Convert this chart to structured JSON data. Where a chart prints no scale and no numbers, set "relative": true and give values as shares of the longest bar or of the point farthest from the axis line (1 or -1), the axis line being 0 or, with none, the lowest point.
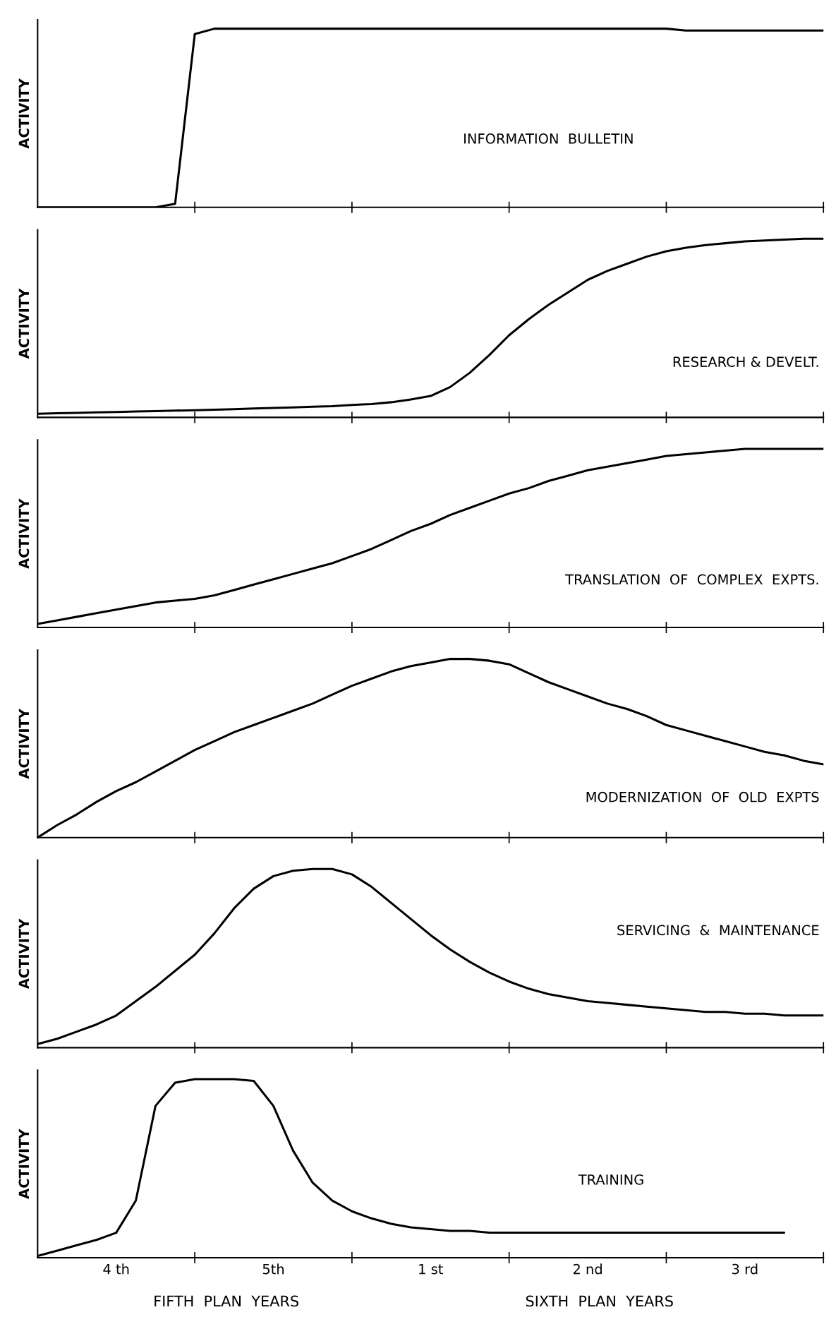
{
  "chart_data": [
    {
      "type": "line",
      "title": "INFORMATION  BULLETIN",
      "ylabel": "ACTIVITY",
      "relative": true,
      "categories": [
        null,
        null,
        null,
        null,
        null,
        null,
        null,
        null,
        null,
        null,
        null,
        null,
        null,
        null,
        null,
        null,
        null,
        null,
        null,
        null,
        null,
        null,
        null,
        null,
        null,
        null,
        null,
        null,
        null,
        null,
        null,
        null,
        null,
        null,
        null,
        null,
        null,
        null,
        null,
        null,
        null
      ],
      "series": [
        {
          "color": "#000000",
          "values": [
            0,
            0,
            0,
            0,
            0,
            0,
            0,
            0.02,
            0.97,
            1,
            1,
            1,
            1,
            1,
            1,
            1,
            1,
            1,
            1,
            1,
            1,
            1,
            1,
            1,
            1,
            1,
            1,
            1,
            1,
            1,
            1,
            1,
            1,
            0.99,
            0.99,
            0.99,
            0.99,
            0.99,
            0.99,
            0.99,
            0.99
          ]
        }
      ]
    },
    {
      "type": "line",
      "title": "RESEARCH & DEVELT.",
      "ylabel": "ACTIVITY",
      "relative": true,
      "categories": [
        null,
        null,
        null,
        null,
        null,
        null,
        null,
        null,
        null,
        null,
        null,
        null,
        null,
        null,
        null,
        null,
        null,
        null,
        null,
        null,
        null,
        null,
        null,
        null,
        null,
        null,
        null,
        null,
        null,
        null,
        null,
        null,
        null,
        null,
        null,
        null,
        null,
        null,
        null,
        null,
        null
      ],
      "series": [
        {
          "color": "#000000",
          "values": [
            0.02,
            0.023,
            0.025,
            0.028,
            0.03,
            0.033,
            0.035,
            0.038,
            0.04,
            0.043,
            0.046,
            0.05,
            0.053,
            0.056,
            0.06,
            0.063,
            0.07,
            0.075,
            0.085,
            0.1,
            0.12,
            0.17,
            0.25,
            0.35,
            0.46,
            0.55,
            0.63,
            0.7,
            0.77,
            0.82,
            0.86,
            0.9,
            0.93,
            0.95,
            0.965,
            0.975,
            0.985,
            0.99,
            0.995,
            1,
            1
          ]
        }
      ]
    },
    {
      "type": "line",
      "title": "TRANSLATION  OF  COMPLEX  EXPTS.",
      "ylabel": "ACTIVITY",
      "relative": true,
      "categories": [
        null,
        null,
        null,
        null,
        null,
        null,
        null,
        null,
        null,
        null,
        null,
        null,
        null,
        null,
        null,
        null,
        null,
        null,
        null,
        null,
        null,
        null,
        null,
        null,
        null,
        null,
        null,
        null,
        null,
        null,
        null,
        null,
        null,
        null,
        null,
        null,
        null,
        null,
        null,
        null,
        null
      ],
      "series": [
        {
          "color": "#000000",
          "values": [
            0.02,
            0.04,
            0.06,
            0.08,
            0.1,
            0.12,
            0.14,
            0.15,
            0.16,
            0.18,
            0.21,
            0.24,
            0.27,
            0.3,
            0.33,
            0.36,
            0.4,
            0.44,
            0.49,
            0.54,
            0.58,
            0.63,
            0.67,
            0.71,
            0.75,
            0.78,
            0.82,
            0.85,
            0.88,
            0.9,
            0.92,
            0.94,
            0.96,
            0.97,
            0.98,
            0.99,
            1,
            1,
            1,
            1,
            1
          ]
        }
      ]
    },
    {
      "type": "line",
      "title": "MODERNIZATION  OF  OLD  EXPTS",
      "ylabel": "ACTIVITY",
      "relative": true,
      "categories": [
        null,
        null,
        null,
        null,
        null,
        null,
        null,
        null,
        null,
        null,
        null,
        null,
        null,
        null,
        null,
        null,
        null,
        null,
        null,
        null,
        null,
        null,
        null,
        null,
        null,
        null,
        null,
        null,
        null,
        null,
        null,
        null,
        null,
        null,
        null,
        null,
        null,
        null,
        null,
        null,
        null
      ],
      "series": [
        {
          "color": "#000000",
          "values": [
            0,
            0.07,
            0.13,
            0.2,
            0.26,
            0.31,
            0.37,
            0.43,
            0.49,
            0.54,
            0.59,
            0.63,
            0.67,
            0.71,
            0.75,
            0.8,
            0.85,
            0.89,
            0.93,
            0.96,
            0.98,
            1,
            1,
            0.99,
            0.97,
            0.92,
            0.87,
            0.83,
            0.79,
            0.75,
            0.72,
            0.68,
            0.63,
            0.6,
            0.57,
            0.54,
            0.51,
            0.48,
            0.46,
            0.43,
            0.41
          ]
        }
      ]
    },
    {
      "type": "line",
      "title": "SERVICING  &  MAINTENANCE",
      "ylabel": "ACTIVITY",
      "relative": true,
      "categories": [
        null,
        null,
        null,
        null,
        null,
        null,
        null,
        null,
        null,
        null,
        null,
        null,
        null,
        null,
        null,
        null,
        null,
        null,
        null,
        null,
        null,
        null,
        null,
        null,
        null,
        null,
        null,
        null,
        null,
        null,
        null,
        null,
        null,
        null,
        null,
        null,
        null,
        null,
        null,
        null,
        null
      ],
      "series": [
        {
          "color": "#000000",
          "values": [
            0.02,
            0.05,
            0.09,
            0.13,
            0.18,
            0.26,
            0.34,
            0.43,
            0.52,
            0.64,
            0.78,
            0.89,
            0.96,
            0.99,
            1,
            1,
            0.97,
            0.9,
            0.81,
            0.72,
            0.63,
            0.55,
            0.48,
            0.42,
            0.37,
            0.33,
            0.3,
            0.28,
            0.26,
            0.25,
            0.24,
            0.23,
            0.22,
            0.21,
            0.2,
            0.2,
            0.19,
            0.19,
            0.18,
            0.18,
            0.18
          ]
        }
      ]
    },
    {
      "type": "line",
      "title": "TRAINING",
      "ylabel": "ACTIVITY",
      "relative": true,
      "categories": [
        null,
        null,
        null,
        null,
        "4 th",
        null,
        null,
        null,
        null,
        null,
        null,
        null,
        "5th",
        null,
        null,
        null,
        null,
        null,
        null,
        null,
        "1 st",
        null,
        null,
        null,
        null,
        null,
        null,
        null,
        "2 nd",
        null,
        null,
        null,
        null,
        null,
        null,
        null,
        "3 rd",
        null,
        null,
        null,
        null
      ],
      "annotations": [
        "FIFTH  PLAN  YEARS",
        "SIXTH  PLAN  YEARS"
      ],
      "series": [
        {
          "color": "#000000",
          "values": [
            0.01,
            0.04,
            0.07,
            0.1,
            0.14,
            0.32,
            0.85,
            0.98,
            1,
            1,
            1,
            0.99,
            0.85,
            0.6,
            0.42,
            0.32,
            0.26,
            0.22,
            0.19,
            0.17,
            0.16,
            0.15,
            0.15,
            0.14,
            0.14,
            0.14,
            0.14,
            0.14,
            0.14,
            0.14,
            0.14,
            0.14,
            0.14,
            0.14,
            0.14,
            0.14,
            0.14,
            0.14,
            0.14,
            null,
            null
          ]
        }
      ]
    }
  ]
}
